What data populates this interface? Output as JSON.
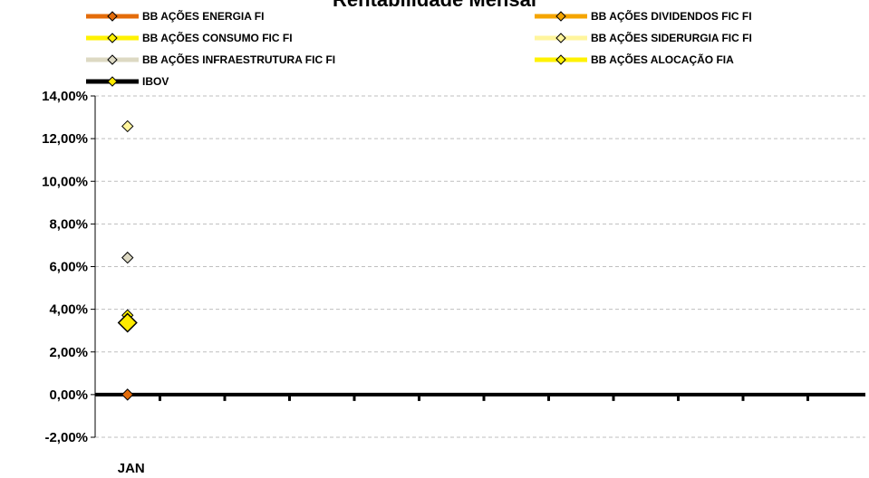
{
  "chart_data": {
    "type": "line",
    "title": "Rentabilidade Mensal",
    "categories": [
      "JAN"
    ],
    "series": [
      {
        "name": "BB AÇÕES ENERGIA FI",
        "values": [
          0.0
        ],
        "color": "#E46C0A"
      },
      {
        "name": "BB AÇÕES DIVIDENDOS FIC FI",
        "values": [
          null
        ],
        "color": "#F5A500"
      },
      {
        "name": "BB AÇÕES CONSUMO FIC FI",
        "values": [
          null
        ],
        "color": "#FFF200"
      },
      {
        "name": "BB AÇÕES SIDERURGIA FIC FI",
        "values": [
          12.58
        ],
        "color": "#FFF59D"
      },
      {
        "name": "BB AÇÕES INFRAESTRUTURA FIC FI",
        "values": [
          6.42
        ],
        "color": "#DDD9C3"
      },
      {
        "name": "BB AÇÕES ALOCAÇÃO FIA",
        "values": [
          3.72
        ],
        "color": "#FFF200"
      },
      {
        "name": "IBOV",
        "values": [
          3.37
        ],
        "color": "#000000"
      }
    ],
    "highlighted_point": {
      "series": "IBOV",
      "value": 3.37,
      "color": "#FFEB00"
    },
    "ylim": [
      -2,
      14
    ],
    "yticks": [
      "-2,00%",
      "0,00%",
      "2,00%",
      "4,00%",
      "6,00%",
      "8,00%",
      "10,00%",
      "12,00%",
      "14,00%"
    ],
    "ytick_values": [
      -2,
      0,
      2,
      4,
      6,
      8,
      10,
      12,
      14
    ],
    "grid": true,
    "legend_position": "top",
    "xlabel": "",
    "ylabel": ""
  }
}
